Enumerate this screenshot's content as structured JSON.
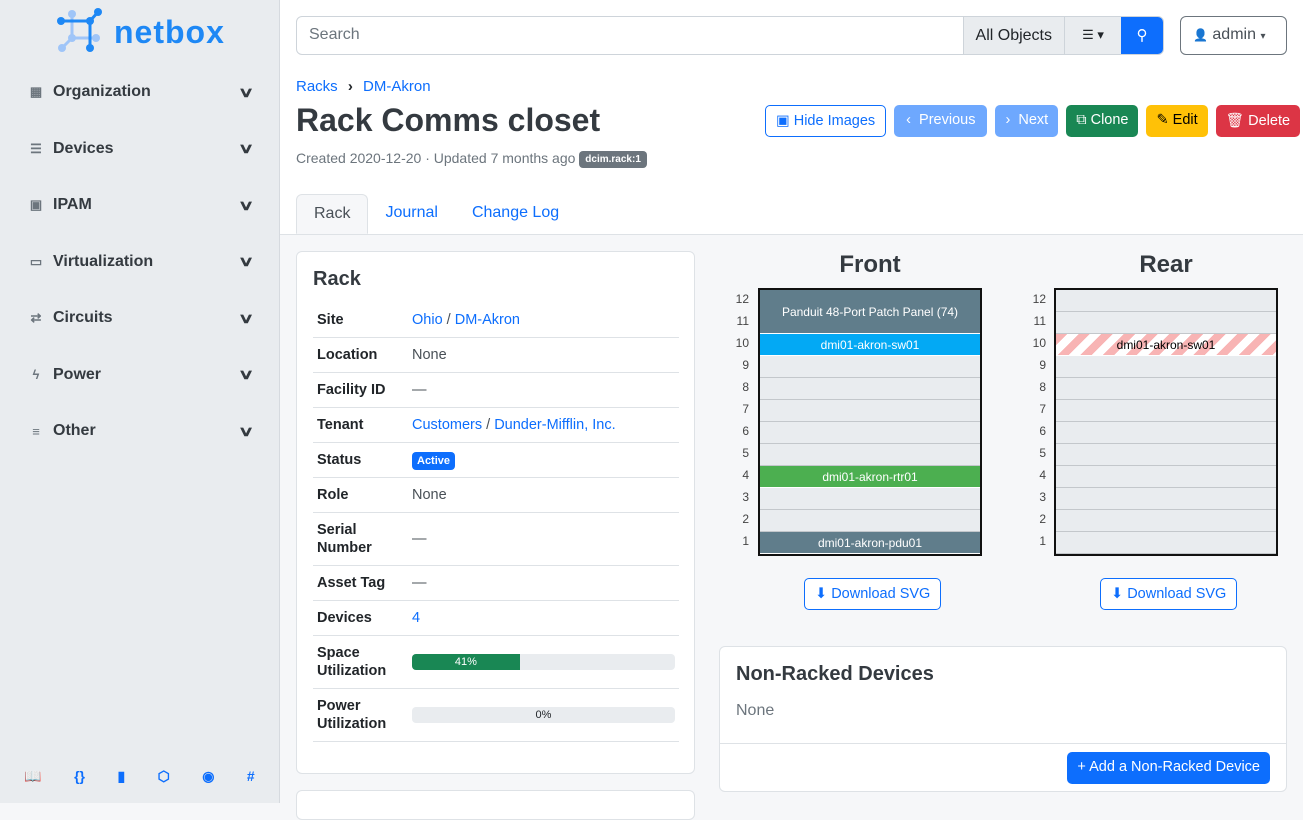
{
  "brand": {
    "name": "netbox"
  },
  "sidebar": {
    "items": [
      {
        "label": "Organization",
        "icon": "building-icon"
      },
      {
        "label": "Devices",
        "icon": "server-icon"
      },
      {
        "label": "IPAM",
        "icon": "ip-icon"
      },
      {
        "label": "Virtualization",
        "icon": "monitor-icon"
      },
      {
        "label": "Circuits",
        "icon": "circuit-icon"
      },
      {
        "label": "Power",
        "icon": "lightning-icon"
      },
      {
        "label": "Other",
        "icon": "lines-icon"
      }
    ],
    "footer": [
      "book-icon",
      "api-braces-icon",
      "bookmark-icon",
      "graphql-icon",
      "github-icon",
      "slack-icon"
    ]
  },
  "search": {
    "placeholder": "Search",
    "scope": "All Objects"
  },
  "user": {
    "name": "admin"
  },
  "breadcrumb": [
    "Racks",
    "DM-Akron"
  ],
  "page": {
    "title": "Rack Comms closet",
    "meta": "Created 2020-12-20 · Updated 7 months ago",
    "badge": "dcim.rack:1"
  },
  "actions": {
    "hide_images": "Hide Images",
    "previous": "Previous",
    "next": "Next",
    "clone": "Clone",
    "edit": "Edit",
    "delete": "Delete"
  },
  "tabs": [
    "Rack",
    "Journal",
    "Change Log"
  ],
  "rack": {
    "title": "Rack",
    "site": [
      "Ohio",
      "DM-Akron"
    ],
    "location": "None",
    "facility_id": "—",
    "tenant": [
      "Customers",
      "Dunder-Mifflin, Inc."
    ],
    "status": "Active",
    "role": "None",
    "serial": "—",
    "asset_tag": "—",
    "devices": "4",
    "space_util": 41,
    "space_util_label": "41%",
    "power_util": 0,
    "power_util_label": "0%",
    "labels": {
      "site": "Site",
      "location": "Location",
      "facility": "Facility ID",
      "tenant": "Tenant",
      "status": "Status",
      "role": "Role",
      "serial": "Serial Number",
      "asset": "Asset Tag",
      "devices": "Devices",
      "space": "Space Utilization",
      "power": "Power Utilization"
    }
  },
  "elevation": {
    "front_title": "Front",
    "rear_title": "Rear",
    "units": [
      12,
      11,
      10,
      9,
      8,
      7,
      6,
      5,
      4,
      3,
      2,
      1
    ],
    "front": [
      {
        "name": "Panduit 48-Port Patch Panel (74)",
        "top": 12,
        "height": 2,
        "color": "#607d8b",
        "text": "#ffffff"
      },
      {
        "name": "dmi01-akron-sw01",
        "top": 10,
        "height": 1,
        "color": "#03a9f4",
        "text": "#ffffff"
      },
      {
        "name": "dmi01-akron-rtr01",
        "top": 4,
        "height": 1,
        "color": "#4caf50",
        "text": "#ffffff"
      },
      {
        "name": "dmi01-akron-pdu01",
        "top": 1,
        "height": 1,
        "color": "#607d8b",
        "text": "#ffffff"
      }
    ],
    "rear": [
      {
        "name": "dmi01-akron-sw01",
        "top": 10,
        "height": 1,
        "color": "hatched",
        "text": "#000000"
      }
    ],
    "download": "Download SVG"
  },
  "non_racked": {
    "title": "Non-Racked Devices",
    "body": "None",
    "add": "Add a Non-Racked Device"
  }
}
